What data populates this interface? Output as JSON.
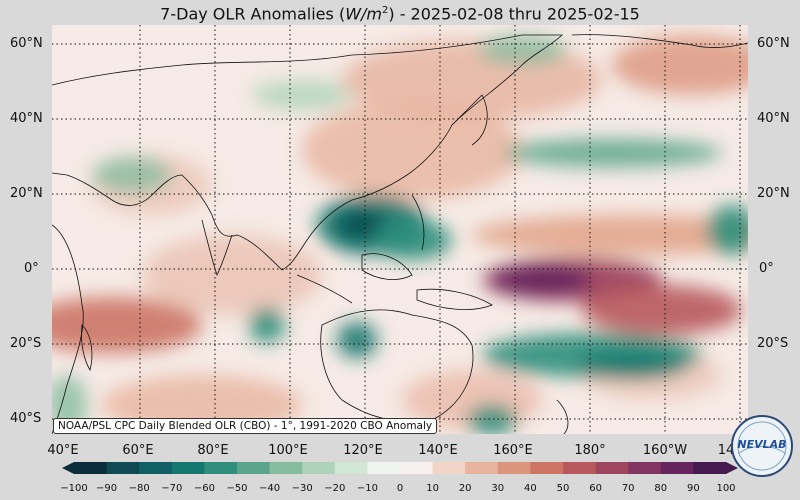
{
  "title_prefix": "7-Day OLR Anomalies (",
  "title_unit": "W/m",
  "title_unit_exp": "2",
  "title_suffix": ") - 2025-02-08 thru 2025-02-15",
  "lat_labels": [
    "60°N",
    "40°N",
    "20°N",
    "0°",
    "20°S",
    "40°S"
  ],
  "lon_labels": [
    "40°E",
    "60°E",
    "80°E",
    "100°E",
    "120°E",
    "140°E",
    "160°E",
    "180°",
    "160°W",
    "14"
  ],
  "attribution": "NOAA/PSL CPC Daily Blended OLR (CBO) - 1°, 1991-2020 CBO Anomaly",
  "colorbar": {
    "ticks": [
      "−100",
      "−90",
      "−80",
      "−70",
      "−60",
      "−50",
      "−40",
      "−30",
      "−20",
      "−10",
      "0",
      "10",
      "20",
      "30",
      "40",
      "50",
      "60",
      "70",
      "80",
      "90",
      "100"
    ],
    "colors": [
      "#0b2e3a",
      "#0f4a52",
      "#116066",
      "#14786f",
      "#2f8f7c",
      "#5aa58c",
      "#86bc9f",
      "#aed3b8",
      "#d2e6d6",
      "#eef4f0",
      "#f8f0ee",
      "#f1d4c8",
      "#e8b49f",
      "#dc957c",
      "#cc7565",
      "#b85a5d",
      "#9e455f",
      "#823463",
      "#64255f",
      "#451b4f"
    ]
  },
  "logo_text": "NEVLAB"
}
